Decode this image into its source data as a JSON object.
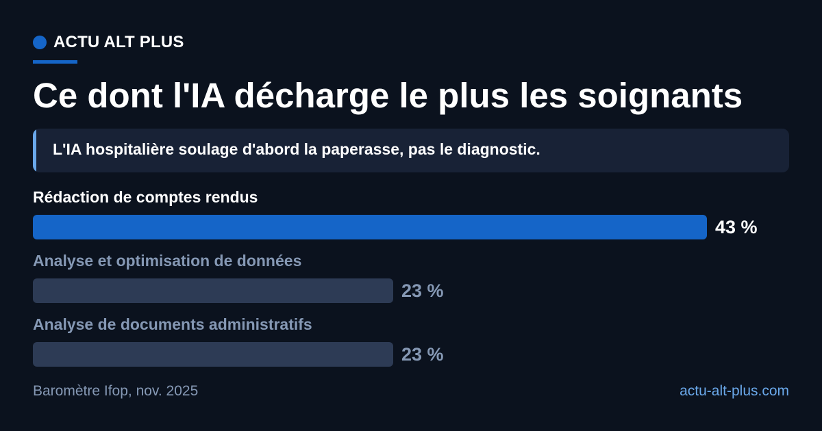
{
  "brand": {
    "name": "ACTU ALT PLUS",
    "color": "#1565c8"
  },
  "title": "Ce dont l'IA décharge le plus les soignants",
  "subtitle": "L'IA hospitalière soulage d'abord la paperasse, pas le diagnostic.",
  "footer": {
    "source": "Baromètre Ifop, nov. 2025",
    "site": "actu-alt-plus.com"
  },
  "colors": {
    "background": "#0b121e",
    "highlight_bar": "#1565c8",
    "muted_bar": "#2d3b55",
    "highlight_text": "#ffffff",
    "muted_text": "#8598b4",
    "accent_light": "#6aa8ea"
  },
  "chart_data": {
    "type": "bar",
    "orientation": "horizontal",
    "unit": "%",
    "categories": [
      "Rédaction de comptes rendus",
      "Analyse et optimisation de données",
      "Analyse de documents administratifs"
    ],
    "values": [
      43,
      23,
      23
    ],
    "value_labels": [
      "43 %",
      "23 %",
      "23 %"
    ],
    "highlighted_index": 0,
    "xlim": [
      0,
      43
    ],
    "grid": false
  }
}
